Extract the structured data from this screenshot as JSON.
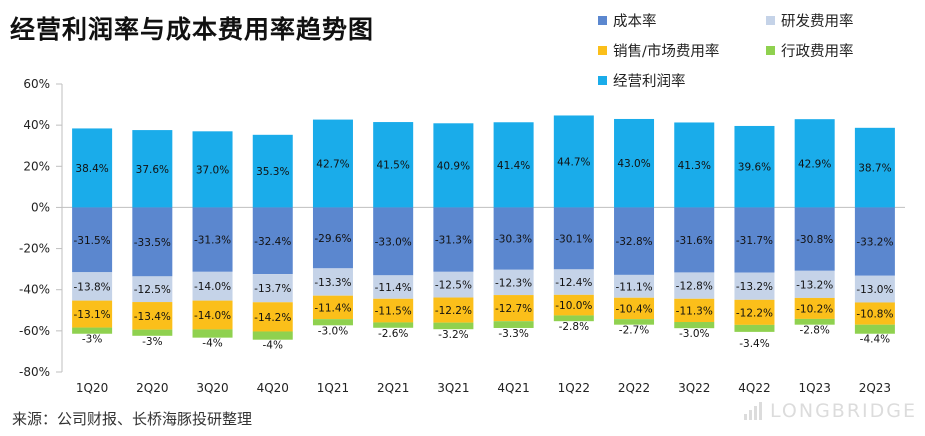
{
  "title": "经营利润率与成本费用率趋势图",
  "source": "来源：公司财报、长桥海豚投研整理",
  "watermark": "LONGBRIDGE",
  "legend": [
    {
      "name": "成本率",
      "color": "#5b87cf"
    },
    {
      "name": "研发费用率",
      "color": "#c5d3e8"
    },
    {
      "name": "销售/市场费用率",
      "color": "#fbbf1a"
    },
    {
      "name": "行政费用率",
      "color": "#8fd14f"
    },
    {
      "name": "经营利润率",
      "color": "#1aacea"
    }
  ],
  "chart_data": {
    "type": "bar",
    "stacked": true,
    "categories": [
      "1Q20",
      "2Q20",
      "3Q20",
      "4Q20",
      "1Q21",
      "2Q21",
      "3Q21",
      "4Q21",
      "1Q22",
      "2Q22",
      "3Q22",
      "4Q22",
      "1Q23",
      "2Q23"
    ],
    "ylim": [
      -80,
      60
    ],
    "yticks": [
      "60%",
      "40%",
      "20%",
      "0%",
      "-20%",
      "-40%",
      "-60%",
      "-80%"
    ],
    "series": [
      {
        "name": "经营利润率",
        "color": "#1aacea",
        "values": [
          38.4,
          37.6,
          37.0,
          35.3,
          42.7,
          41.5,
          40.9,
          41.4,
          44.7,
          43.0,
          41.3,
          39.6,
          42.9,
          38.7
        ],
        "labels": [
          "38.4%",
          "37.6%",
          "37.0%",
          "35.3%",
          "42.7%",
          "41.5%",
          "40.9%",
          "41.4%",
          "44.7%",
          "43.0%",
          "41.3%",
          "39.6%",
          "42.9%",
          "38.7%"
        ]
      },
      {
        "name": "成本率",
        "color": "#5b87cf",
        "values": [
          -31.5,
          -33.5,
          -31.3,
          -32.4,
          -29.6,
          -33.0,
          -31.3,
          -30.3,
          -30.1,
          -32.8,
          -31.6,
          -31.7,
          -30.8,
          -33.2
        ],
        "labels": [
          "-31.5%",
          "-33.5%",
          "-31.3%",
          "-32.4%",
          "-29.6%",
          "-33.0%",
          "-31.3%",
          "-30.3%",
          "-30.1%",
          "-32.8%",
          "-31.6%",
          "-31.7%",
          "-30.8%",
          "-33.2%"
        ]
      },
      {
        "name": "研发费用率",
        "color": "#c5d3e8",
        "values": [
          -13.8,
          -12.5,
          -14.0,
          -13.7,
          -13.3,
          -11.4,
          -12.5,
          -12.3,
          -12.4,
          -11.1,
          -12.8,
          -13.2,
          -13.2,
          -13.0
        ],
        "labels": [
          "-13.8%",
          "-12.5%",
          "-14.0%",
          "-13.7%",
          "-13.3%",
          "-11.4%",
          "-12.5%",
          "-12.3%",
          "-12.4%",
          "-11.1%",
          "-12.8%",
          "-13.2%",
          "-13.2%",
          "-13.0%"
        ]
      },
      {
        "name": "销售/市场费用率",
        "color": "#fbbf1a",
        "values": [
          -13.1,
          -13.4,
          -14.0,
          -14.2,
          -11.4,
          -11.5,
          -12.2,
          -12.7,
          -10.0,
          -10.4,
          -11.3,
          -12.2,
          -10.2,
          -10.8
        ],
        "labels": [
          "-13.1%",
          "-13.4%",
          "-14.0%",
          "-14.2%",
          "-11.4%",
          "-11.5%",
          "-12.2%",
          "-12.7%",
          "-10.0%",
          "-10.4%",
          "-11.3%",
          "-12.2%",
          "-10.2%",
          "-10.8%"
        ]
      },
      {
        "name": "行政费用率",
        "color": "#8fd14f",
        "values": [
          -3,
          -3,
          -4,
          -4,
          -3.0,
          -2.6,
          -3.2,
          -3.3,
          -2.8,
          -2.7,
          -3.0,
          -3.4,
          -2.8,
          -4.4
        ],
        "labels": [
          "-3%",
          "-3%",
          "-4%",
          "-4%",
          "-3.0%",
          "-2.6%",
          "-3.2%",
          "-3.3%",
          "-2.8%",
          "-2.7%",
          "-3.0%",
          "-3.4%",
          "-2.8%",
          "-4.4%"
        ]
      }
    ]
  }
}
